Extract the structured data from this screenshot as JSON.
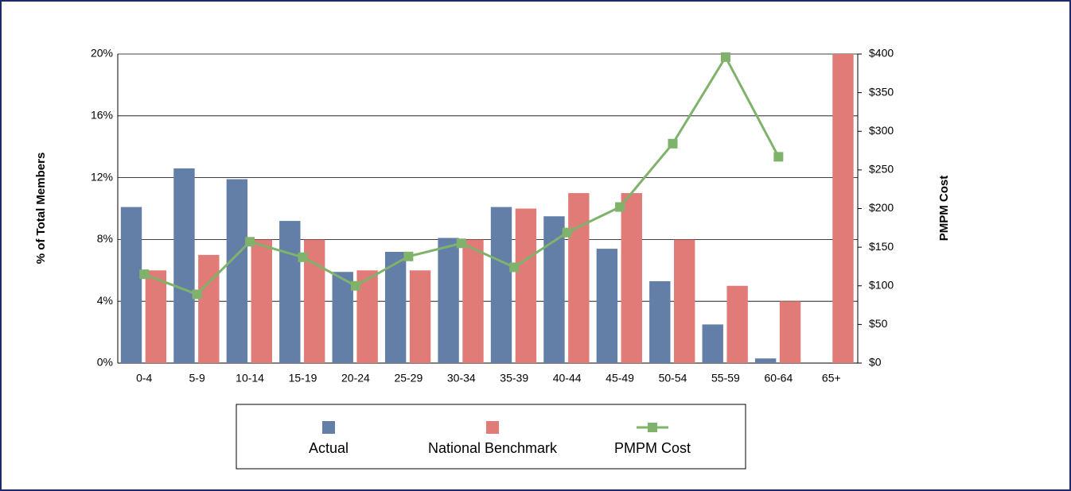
{
  "chart_data": {
    "type": "bar",
    "categories": [
      "0-4",
      "5-9",
      "10-14",
      "15-19",
      "20-24",
      "25-29",
      "30-34",
      "35-39",
      "40-44",
      "45-49",
      "50-54",
      "55-59",
      "60-64",
      "65+"
    ],
    "series": [
      {
        "name": "Actual",
        "color": "#637fa8",
        "values": [
          10.1,
          12.6,
          11.9,
          9.2,
          5.9,
          7.2,
          8.1,
          10.1,
          9.5,
          7.4,
          5.3,
          2.5,
          0.3,
          0
        ]
      },
      {
        "name": "National Benchmark",
        "color": "#e07b78",
        "values": [
          6,
          7,
          8,
          8,
          6,
          6,
          8,
          10,
          11,
          11,
          8,
          5,
          4,
          20
        ]
      },
      {
        "name": "PMPM Cost",
        "color": "#7fb26a",
        "type": "line",
        "axis": "y2",
        "values": [
          115,
          89,
          157,
          137,
          100,
          138,
          155,
          124,
          169,
          202,
          284,
          396,
          267,
          null
        ]
      }
    ],
    "ylabel": "% of Total Members",
    "y2label": "PMPM Cost",
    "ylim": [
      0,
      20
    ],
    "yticks": [
      {
        "value": 0,
        "label": "0%"
      },
      {
        "value": 4,
        "label": "4%"
      },
      {
        "value": 8,
        "label": "8%"
      },
      {
        "value": 12,
        "label": "12%"
      },
      {
        "value": 16,
        "label": "16%"
      },
      {
        "value": 20,
        "label": "20%"
      }
    ],
    "y2lim": [
      0,
      400
    ],
    "y2ticks": [
      {
        "value": 0,
        "label": "$0"
      },
      {
        "value": 50,
        "label": "$50"
      },
      {
        "value": 100,
        "label": "$100"
      },
      {
        "value": 150,
        "label": "$150"
      },
      {
        "value": 200,
        "label": "$200"
      },
      {
        "value": 250,
        "label": "$250"
      },
      {
        "value": 300,
        "label": "$300"
      },
      {
        "value": 350,
        "label": "$350"
      },
      {
        "value": 400,
        "label": "$400"
      }
    ],
    "grid": true,
    "legend": "bottom"
  }
}
